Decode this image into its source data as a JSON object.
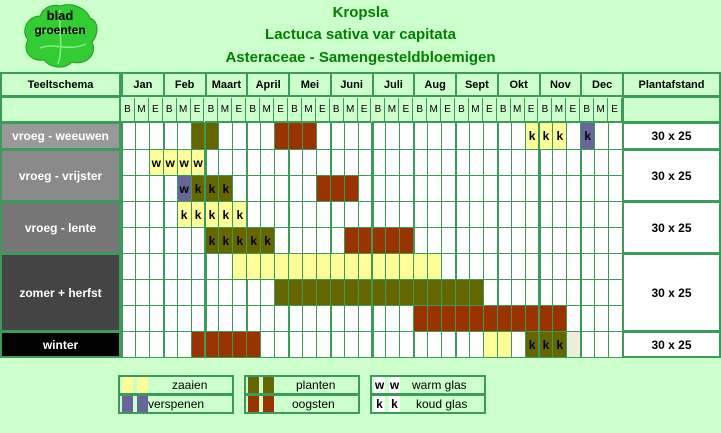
{
  "header": {
    "logo_text_1": "blad",
    "logo_text_2": "groenten",
    "title": "Kropsla",
    "subtitle": "Lactuca sativa var capitata",
    "family": "Asteraceae - Samengesteldbloemigen"
  },
  "table": {
    "schema_label": "Teeltschema",
    "spacing_label": "Plantafstand",
    "months": [
      "Jan",
      "Feb",
      "Maart",
      "April",
      "Mei",
      "Juni",
      "Juli",
      "Aug",
      "Sept",
      "Okt",
      "Nov",
      "Dec"
    ],
    "decades": [
      "B",
      "M",
      "E"
    ],
    "rows": [
      {
        "label": "vroeg - weeuwen",
        "label_color": "#999999",
        "spacing": "30 x 25",
        "lines": 1
      },
      {
        "label": "vroeg - vrijster",
        "label_color": "#8a8a8a",
        "spacing": "30 x 25",
        "lines": 2
      },
      {
        "label": "vroeg - lente",
        "label_color": "#777777",
        "spacing": "30 x 25",
        "lines": 2
      },
      {
        "label": "zomer + herfst",
        "label_color": "#444444",
        "spacing": "30 x 25",
        "lines": 3
      },
      {
        "label": "winter",
        "label_color": "#000000",
        "spacing": "30 x 25",
        "lines": 1
      }
    ]
  },
  "schedule": [
    {
      "row": 0,
      "line": 0,
      "cells": [
        [
          6,
          "planten",
          ""
        ],
        [
          7,
          "planten",
          ""
        ],
        [
          12,
          "oogsten",
          ""
        ],
        [
          13,
          "oogsten",
          ""
        ],
        [
          14,
          "oogsten",
          ""
        ],
        [
          30,
          "zaaien",
          "k"
        ],
        [
          31,
          "zaaien",
          "k"
        ],
        [
          32,
          "zaaien",
          "k"
        ],
        [
          34,
          "verspenen",
          "k"
        ]
      ]
    },
    {
      "row": 1,
      "line": 0,
      "cells": [
        [
          3,
          "zaaien",
          "w"
        ],
        [
          4,
          "zaaien",
          "w"
        ],
        [
          5,
          "zaaien",
          "w"
        ],
        [
          6,
          "zaaien",
          "w"
        ]
      ]
    },
    {
      "row": 1,
      "line": 1,
      "cells": [
        [
          5,
          "verspenen",
          "w"
        ],
        [
          6,
          "planten",
          "k"
        ],
        [
          7,
          "planten",
          "k"
        ],
        [
          8,
          "planten",
          "k"
        ],
        [
          15,
          "oogsten",
          ""
        ],
        [
          16,
          "oogsten",
          ""
        ],
        [
          17,
          "oogsten",
          ""
        ]
      ]
    },
    {
      "row": 2,
      "line": 0,
      "cells": [
        [
          5,
          "zaaien",
          "k"
        ],
        [
          6,
          "zaaien",
          "k"
        ],
        [
          7,
          "zaaien",
          "k"
        ],
        [
          8,
          "zaaien",
          "k"
        ],
        [
          9,
          "zaaien",
          "k"
        ]
      ]
    },
    {
      "row": 2,
      "line": 1,
      "cells": [
        [
          7,
          "planten",
          "k"
        ],
        [
          8,
          "planten",
          "k"
        ],
        [
          9,
          "planten",
          "k"
        ],
        [
          10,
          "planten",
          "k"
        ],
        [
          11,
          "planten",
          "k"
        ],
        [
          17,
          "oogsten",
          ""
        ],
        [
          18,
          "oogsten",
          ""
        ],
        [
          19,
          "oogsten",
          ""
        ],
        [
          20,
          "oogsten",
          ""
        ],
        [
          21,
          "oogsten",
          ""
        ]
      ]
    },
    {
      "row": 3,
      "line": 0,
      "cells": [
        [
          9,
          "zaaien",
          ""
        ],
        [
          10,
          "zaaien",
          ""
        ],
        [
          11,
          "zaaien",
          ""
        ],
        [
          12,
          "zaaien",
          ""
        ],
        [
          13,
          "zaaien",
          ""
        ],
        [
          14,
          "zaaien",
          ""
        ],
        [
          15,
          "zaaien",
          ""
        ],
        [
          16,
          "zaaien",
          ""
        ],
        [
          17,
          "zaaien",
          ""
        ],
        [
          18,
          "zaaien",
          ""
        ],
        [
          19,
          "zaaien",
          ""
        ],
        [
          20,
          "zaaien",
          ""
        ],
        [
          21,
          "zaaien",
          ""
        ],
        [
          22,
          "zaaien",
          ""
        ],
        [
          23,
          "zaaien",
          ""
        ]
      ]
    },
    {
      "row": 3,
      "line": 1,
      "cells": [
        [
          12,
          "planten",
          ""
        ],
        [
          13,
          "planten",
          ""
        ],
        [
          14,
          "planten",
          ""
        ],
        [
          15,
          "planten",
          ""
        ],
        [
          16,
          "planten",
          ""
        ],
        [
          17,
          "planten",
          ""
        ],
        [
          18,
          "planten",
          ""
        ],
        [
          19,
          "planten",
          ""
        ],
        [
          20,
          "planten",
          ""
        ],
        [
          21,
          "planten",
          ""
        ],
        [
          22,
          "planten",
          ""
        ],
        [
          23,
          "planten",
          ""
        ],
        [
          24,
          "planten",
          ""
        ],
        [
          25,
          "planten",
          ""
        ],
        [
          26,
          "planten",
          ""
        ]
      ]
    },
    {
      "row": 3,
      "line": 2,
      "cells": [
        [
          22,
          "oogsten",
          ""
        ],
        [
          23,
          "oogsten",
          ""
        ],
        [
          24,
          "oogsten",
          ""
        ],
        [
          25,
          "oogsten",
          ""
        ],
        [
          26,
          "oogsten",
          ""
        ],
        [
          27,
          "oogsten",
          ""
        ],
        [
          28,
          "oogsten",
          ""
        ],
        [
          29,
          "oogsten",
          ""
        ],
        [
          30,
          "oogsten",
          ""
        ],
        [
          31,
          "oogsten",
          ""
        ],
        [
          32,
          "oogsten",
          ""
        ]
      ]
    },
    {
      "row": 4,
      "line": 0,
      "cells": [
        [
          6,
          "oogsten",
          ""
        ],
        [
          7,
          "oogsten",
          ""
        ],
        [
          8,
          "oogsten",
          ""
        ],
        [
          9,
          "oogsten",
          ""
        ],
        [
          10,
          "oogsten",
          ""
        ],
        [
          27,
          "zaaien",
          ""
        ],
        [
          28,
          "zaaien",
          ""
        ],
        [
          30,
          "planten",
          "k"
        ],
        [
          31,
          "planten",
          "k"
        ],
        [
          32,
          "planten",
          "k"
        ],
        [
          33,
          "rest",
          ""
        ]
      ]
    }
  ],
  "colors": {
    "zaaien": "#ffff99",
    "verspenen": "#666699",
    "planten": "#666600",
    "oogsten": "#993300",
    "rest": "#eeeedd",
    "frame": "#3c9a5a"
  },
  "legend": {
    "zaaien": "zaaien",
    "verspenen": "verspenen",
    "planten": "planten",
    "oogsten": "oogsten",
    "warm": "warm glas",
    "koud": "koud glas",
    "w": "w",
    "k": "k"
  }
}
